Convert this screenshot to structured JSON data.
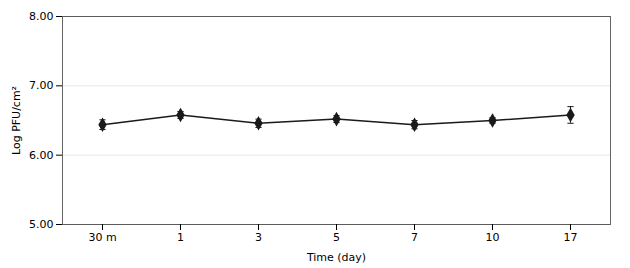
{
  "chart_data": {
    "type": "line",
    "categories": [
      "30 m",
      "1",
      "3",
      "5",
      "7",
      "10",
      "17"
    ],
    "values": [
      6.44,
      6.58,
      6.46,
      6.52,
      6.44,
      6.5,
      6.58
    ],
    "errors": [
      0.07,
      0.05,
      0.06,
      0.05,
      0.06,
      0.04,
      0.12
    ],
    "color": "#1a1a1a",
    "marker": "diamond",
    "xlabel": "Time (day)",
    "ylabel": "Log PFU/cm²",
    "ylim": [
      5.0,
      8.0
    ],
    "yticks": [
      {
        "value": 5.0,
        "label": "5.00"
      },
      {
        "value": 6.0,
        "label": "6.00"
      },
      {
        "value": 7.0,
        "label": "7.00"
      },
      {
        "value": 8.0,
        "label": "8.00"
      }
    ],
    "grid": true
  }
}
